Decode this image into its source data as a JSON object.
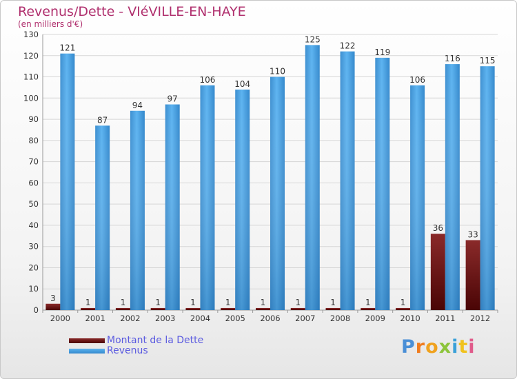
{
  "header": {
    "title": "Revenus/Dette - VIéVILLE-EN-HAYE",
    "subtitle": "(en milliers d'€)"
  },
  "legend": {
    "debt_label": "Montant de la Dette",
    "revenue_label": "Revenus"
  },
  "brand": {
    "letters": [
      "P",
      "r",
      "o",
      "x",
      "i",
      "t",
      "i"
    ]
  },
  "colors": {
    "debt": "#6b0f0f",
    "revenue": "#4aa3e6",
    "title": "#b0306e",
    "legend_text": "#5a5ae0"
  },
  "chart_data": {
    "type": "bar",
    "title": "Revenus/Dette - VIéVILLE-EN-HAYE",
    "ylabel": "(en milliers d'€)",
    "xlabel": "",
    "categories": [
      "2000",
      "2001",
      "2002",
      "2003",
      "2004",
      "2005",
      "2006",
      "2007",
      "2008",
      "2009",
      "2010",
      "2011",
      "2012"
    ],
    "series": [
      {
        "name": "Montant de la Dette",
        "values": [
          3,
          1,
          1,
          1,
          1,
          1,
          1,
          1,
          1,
          1,
          1,
          36,
          33
        ]
      },
      {
        "name": "Revenus",
        "values": [
          121,
          87,
          94,
          97,
          106,
          104,
          110,
          125,
          122,
          119,
          106,
          116,
          115
        ]
      }
    ],
    "ylim": [
      0,
      130
    ],
    "yticks": [
      0,
      10,
      20,
      30,
      40,
      50,
      60,
      70,
      80,
      90,
      100,
      110,
      120,
      130
    ],
    "grid": true,
    "legend_position": "bottom-left"
  }
}
